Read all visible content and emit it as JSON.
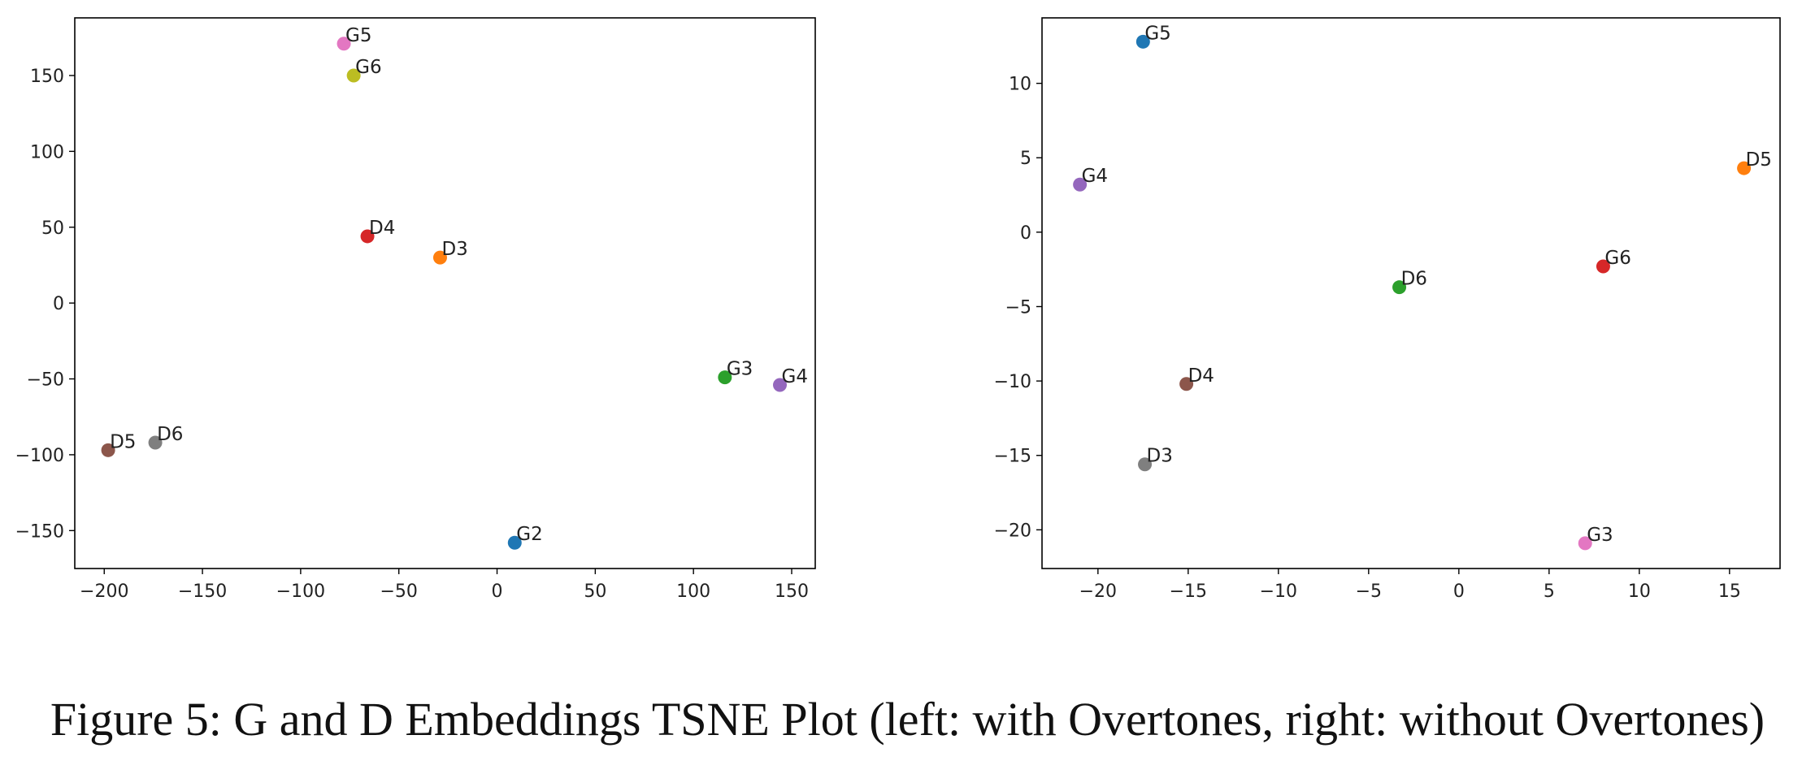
{
  "caption": "Figure 5: G and D Embeddings TSNE Plot (left: with Overtones, right: without Overtones)",
  "chart_data": [
    {
      "type": "scatter",
      "title": "",
      "xlabel": "",
      "ylabel": "",
      "xlim": [
        -215,
        162
      ],
      "ylim": [
        -175,
        188
      ],
      "xticks": [
        -200,
        -150,
        -100,
        -50,
        0,
        50,
        100,
        150
      ],
      "xtick_labels": [
        "−200",
        "−150",
        "−100",
        "−50",
        "0",
        "50",
        "100",
        "150"
      ],
      "yticks": [
        -150,
        -100,
        -50,
        0,
        50,
        100,
        150
      ],
      "ytick_labels": [
        "−150",
        "−100",
        "−50",
        "0",
        "50",
        "100",
        "150"
      ],
      "grid": false,
      "points": [
        {
          "label": "G2",
          "x": 9,
          "y": -158,
          "color": "#1f77b4"
        },
        {
          "label": "D3",
          "x": -29,
          "y": 30,
          "color": "#ff7f0e"
        },
        {
          "label": "G3",
          "x": 116,
          "y": -49,
          "color": "#2ca02c"
        },
        {
          "label": "D4",
          "x": -66,
          "y": 44,
          "color": "#d62728"
        },
        {
          "label": "G4",
          "x": 144,
          "y": -54,
          "color": "#9467bd"
        },
        {
          "label": "D5",
          "x": -198,
          "y": -97,
          "color": "#8c564b"
        },
        {
          "label": "G5",
          "x": -78,
          "y": 171,
          "color": "#e377c2"
        },
        {
          "label": "D6",
          "x": -174,
          "y": -92,
          "color": "#7f7f7f"
        },
        {
          "label": "G6",
          "x": -73,
          "y": 150,
          "color": "#bcbd22"
        }
      ]
    },
    {
      "type": "scatter",
      "title": "",
      "xlabel": "",
      "ylabel": "",
      "xlim": [
        -23.1,
        17.8
      ],
      "ylim": [
        -22.6,
        14.4
      ],
      "xticks": [
        -20,
        -15,
        -10,
        -5,
        0,
        5,
        10,
        15
      ],
      "xtick_labels": [
        "−20",
        "−15",
        "−10",
        "−5",
        "0",
        "5",
        "10",
        "15"
      ],
      "yticks": [
        -20,
        -15,
        -10,
        -5,
        0,
        5,
        10
      ],
      "ytick_labels": [
        "−20",
        "−15",
        "−10",
        "−5",
        "0",
        "5",
        "10"
      ],
      "grid": false,
      "points": [
        {
          "label": "G5",
          "x": -17.5,
          "y": 12.8,
          "color": "#1f77b4"
        },
        {
          "label": "D5",
          "x": 15.8,
          "y": 4.3,
          "color": "#ff7f0e"
        },
        {
          "label": "D6",
          "x": -3.3,
          "y": -3.7,
          "color": "#2ca02c"
        },
        {
          "label": "G6",
          "x": 8.0,
          "y": -2.3,
          "color": "#d62728"
        },
        {
          "label": "G4",
          "x": -21.0,
          "y": 3.2,
          "color": "#9467bd"
        },
        {
          "label": "D4",
          "x": -15.1,
          "y": -10.2,
          "color": "#8c564b"
        },
        {
          "label": "G3",
          "x": 7.0,
          "y": -20.9,
          "color": "#e377c2"
        },
        {
          "label": "D3",
          "x": -17.4,
          "y": -15.6,
          "color": "#7f7f7f"
        }
      ]
    }
  ]
}
